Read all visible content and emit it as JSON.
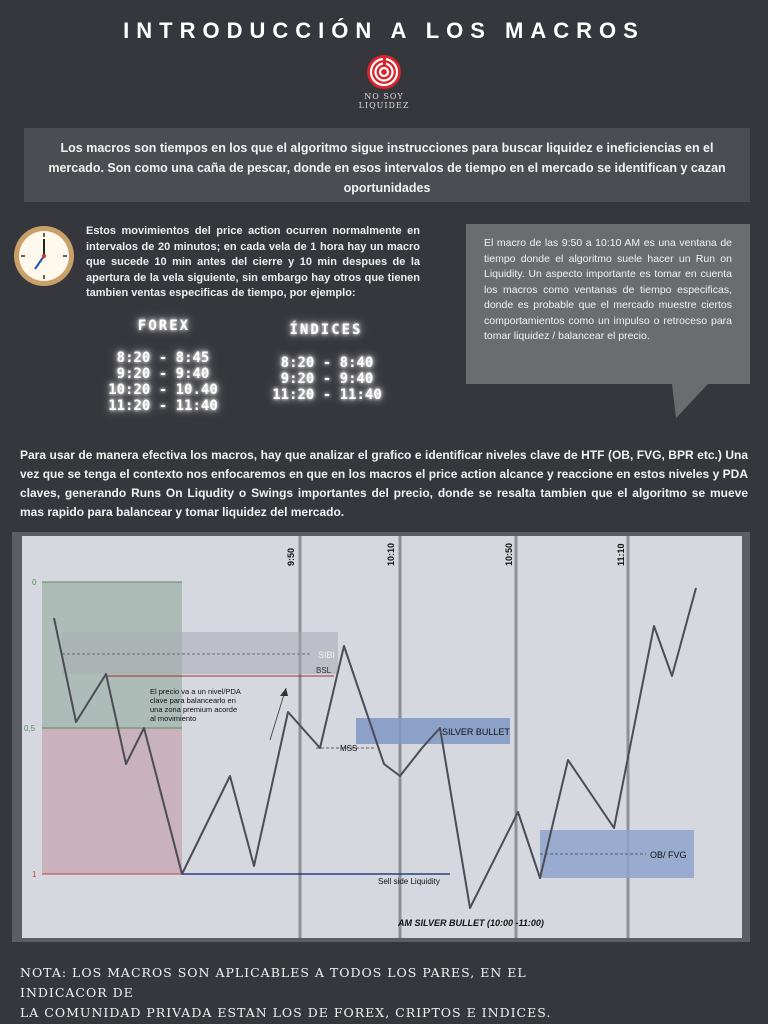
{
  "title": "INTRODUCCIÓN A LOS MACROS",
  "logo": {
    "line1": "NO SOY",
    "line2": "LIQUIDEZ",
    "accent": "#d9252b"
  },
  "intro": "Los macros son tiempos en los  que el algoritmo sigue instrucciones para buscar liquidez e ineficiencias en el mercado. Son como una caña de pescar, donde en esos intervalos de tiempo en el mercado se identifican y cazan oportunidades",
  "left_text": "Estos movimientos del price action ocurren normalmente en intervalos de 20 minutos; en cada vela de 1 hora hay un macro que sucede 10 min antes del cierre y 10 min despues de la apertura de la vela siguiente, sin embargo hay otros que tienen tambien ventas especificas de tiempo, por ejemplo:",
  "forex": {
    "heading": "FOREX",
    "times": [
      "8:20 - 8:45",
      "9:20 - 9:40",
      "10:20 - 10.40",
      "11:20 - 11:40"
    ]
  },
  "indices": {
    "heading": "ÍNDICES",
    "times": [
      "8:20 - 8:40",
      "9:20 - 9:40",
      "11:20 - 11:40"
    ]
  },
  "bubble_text": "El macro de las 9:50 a 10:10 AM es una ventana de tiempo donde el algoritmo suele hacer un Run on Liquidity. Un aspecto importante es tomar en cuenta los macros como ventanas de tiempo especificas, donde es probable que el mercado muestre ciertos comportamientos como un impulso o retroceso para tomar liquidez / balancear el precio.",
  "paragraph": "Para usar de manera efectiva los macros, hay que analizar el grafico e identificar niveles clave de HTF (OB, FVG, BPR etc.) Una vez que se tenga el contexto nos enfocaremos en que en los macros el price action alcance y reaccione en estos niveles y PDA claves, generando Runs On Liqudity o Swings importantes del precio, donde se resalta tambien que el algoritmo se mueve mas rapido para balancear y tomar liquidez del mercado.",
  "chart": {
    "fib_levels": [
      "0",
      "0,5",
      "1"
    ],
    "time_labels": [
      "9:50",
      "10:10",
      "10:50",
      "11:10"
    ],
    "sibi": "SIBI",
    "bsl": "BSL",
    "mss": "MSS",
    "silver_bullet": "SILVER BULLET",
    "ob_fvg": "OB/ FVG",
    "sell_side": "Sell side Liquidity",
    "am_silver": "AM SILVER BULLET (10:00 -11:00)",
    "annotation": [
      "El precio va a un nivel/PDA",
      "clave para balancearlo  en",
      "una zona premium acorde",
      "al movimiento"
    ]
  },
  "note_lines": [
    "NOTA: LOS MACROS SON APLICABLES A TODOS LOS PARES, EN EL INDICACOR DE",
    "LA COMUNIDAD PRIVADA ESTAN LOS DE FOREX, CRIPTOS E INDICES."
  ]
}
